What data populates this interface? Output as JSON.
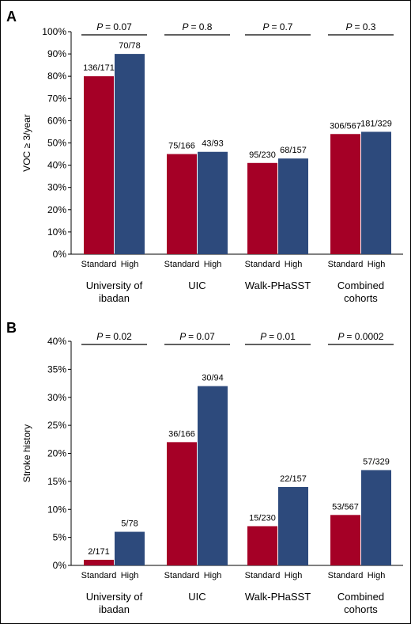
{
  "colors": {
    "standard": "#a50026",
    "high": "#2d4a7c",
    "axis": "#000000",
    "frame": "#000000"
  },
  "chart_data": [
    {
      "type": "bar",
      "panel": "A",
      "ylabel": "VOC ≥ 3/year",
      "ylim": [
        0,
        100
      ],
      "yticks": [
        "0%",
        "10%",
        "20%",
        "30%",
        "40%",
        "50%",
        "60%",
        "70%",
        "80%",
        "90%",
        "100%"
      ],
      "groups": [
        {
          "name_lines": [
            "University of",
            "ibadan"
          ],
          "p_label": "P",
          "p_value": "= 0.07",
          "bars": [
            {
              "sub": "Standard",
              "value": 80,
              "label": "136/171"
            },
            {
              "sub": "High",
              "value": 90,
              "label": "70/78"
            }
          ]
        },
        {
          "name_lines": [
            "UIC"
          ],
          "p_label": "P",
          "p_value": "= 0.8",
          "bars": [
            {
              "sub": "Standard",
              "value": 45,
              "label": "75/166"
            },
            {
              "sub": "High",
              "value": 46,
              "label": "43/93"
            }
          ]
        },
        {
          "name_lines": [
            "Walk-PHaSST"
          ],
          "p_label": "P",
          "p_value": "= 0.7",
          "bars": [
            {
              "sub": "Standard",
              "value": 41,
              "label": "95/230"
            },
            {
              "sub": "High",
              "value": 43,
              "label": "68/157"
            }
          ]
        },
        {
          "name_lines": [
            "Combined",
            "cohorts"
          ],
          "p_label": "P",
          "p_value": "= 0.3",
          "bars": [
            {
              "sub": "Standard",
              "value": 54,
              "label": "306/567"
            },
            {
              "sub": "High",
              "value": 55,
              "label": "181/329"
            }
          ]
        }
      ]
    },
    {
      "type": "bar",
      "panel": "B",
      "ylabel": "Stroke history",
      "ylim": [
        0,
        40
      ],
      "yticks": [
        "0%",
        "5%",
        "10%",
        "15%",
        "20%",
        "25%",
        "30%",
        "35%",
        "40%"
      ],
      "groups": [
        {
          "name_lines": [
            "University of",
            "ibadan"
          ],
          "p_label": "P",
          "p_value": "= 0.02",
          "bars": [
            {
              "sub": "Standard",
              "value": 1,
              "label": "2/171"
            },
            {
              "sub": "High",
              "value": 6,
              "label": "5/78"
            }
          ]
        },
        {
          "name_lines": [
            "UIC"
          ],
          "p_label": "P",
          "p_value": "= 0.07",
          "bars": [
            {
              "sub": "Standard",
              "value": 22,
              "label": "36/166"
            },
            {
              "sub": "High",
              "value": 32,
              "label": "30/94"
            }
          ]
        },
        {
          "name_lines": [
            "Walk-PHaSST"
          ],
          "p_label": "P",
          "p_value": "= 0.01",
          "bars": [
            {
              "sub": "Standard",
              "value": 7,
              "label": "15/230"
            },
            {
              "sub": "High",
              "value": 14,
              "label": "22/157"
            }
          ]
        },
        {
          "name_lines": [
            "Combined",
            "cohorts"
          ],
          "p_label": "P",
          "p_value": "= 0.0002",
          "bars": [
            {
              "sub": "Standard",
              "value": 9,
              "label": "53/567"
            },
            {
              "sub": "High",
              "value": 17,
              "label": "57/329"
            }
          ]
        }
      ]
    }
  ]
}
